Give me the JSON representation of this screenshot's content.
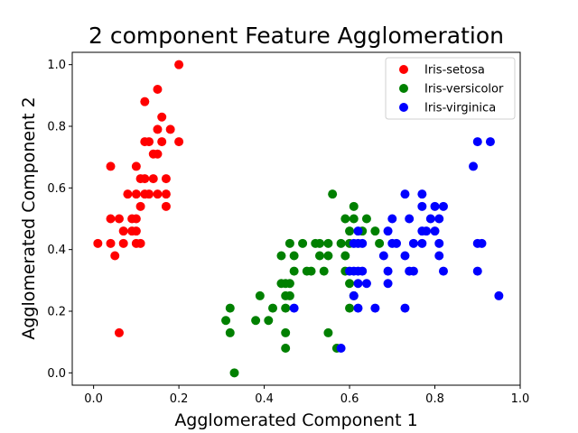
{
  "chart_data": {
    "type": "scatter",
    "title": "2 component Feature Agglomeration",
    "xlabel": "Agglomerated Component 1",
    "ylabel": "Agglomerated Component 2",
    "xlim": [
      -0.05,
      1.0
    ],
    "ylim": [
      -0.04,
      1.04
    ],
    "xticks": [
      "0.0",
      "0.2",
      "0.4",
      "0.6",
      "0.8",
      "1.0"
    ],
    "yticks": [
      "0.0",
      "0.2",
      "0.4",
      "0.6",
      "0.8",
      "1.0"
    ],
    "grid": false,
    "legend_position": "top-right",
    "series": [
      {
        "name": "Iris-setosa",
        "color": "#ff0000",
        "points": [
          [
            0.2,
            1.0
          ],
          [
            0.15,
            0.92
          ],
          [
            0.12,
            0.88
          ],
          [
            0.16,
            0.83
          ],
          [
            0.15,
            0.79
          ],
          [
            0.18,
            0.79
          ],
          [
            0.12,
            0.75
          ],
          [
            0.13,
            0.75
          ],
          [
            0.16,
            0.75
          ],
          [
            0.2,
            0.75
          ],
          [
            0.14,
            0.71
          ],
          [
            0.15,
            0.71
          ],
          [
            0.04,
            0.67
          ],
          [
            0.1,
            0.67
          ],
          [
            0.11,
            0.63
          ],
          [
            0.12,
            0.63
          ],
          [
            0.14,
            0.63
          ],
          [
            0.17,
            0.63
          ],
          [
            0.08,
            0.58
          ],
          [
            0.1,
            0.58
          ],
          [
            0.12,
            0.58
          ],
          [
            0.13,
            0.58
          ],
          [
            0.15,
            0.58
          ],
          [
            0.17,
            0.58
          ],
          [
            0.11,
            0.54
          ],
          [
            0.17,
            0.54
          ],
          [
            0.04,
            0.5
          ],
          [
            0.06,
            0.5
          ],
          [
            0.09,
            0.5
          ],
          [
            0.1,
            0.5
          ],
          [
            0.07,
            0.46
          ],
          [
            0.09,
            0.46
          ],
          [
            0.1,
            0.46
          ],
          [
            0.04,
            0.42
          ],
          [
            0.07,
            0.42
          ],
          [
            0.1,
            0.42
          ],
          [
            0.11,
            0.42
          ],
          [
            0.01,
            0.42
          ],
          [
            0.05,
            0.38
          ],
          [
            0.06,
            0.13
          ]
        ]
      },
      {
        "name": "Iris-versicolor",
        "color": "#008000",
        "points": [
          [
            0.56,
            0.58
          ],
          [
            0.61,
            0.54
          ],
          [
            0.59,
            0.5
          ],
          [
            0.61,
            0.5
          ],
          [
            0.64,
            0.5
          ],
          [
            0.6,
            0.46
          ],
          [
            0.63,
            0.46
          ],
          [
            0.66,
            0.46
          ],
          [
            0.46,
            0.42
          ],
          [
            0.49,
            0.42
          ],
          [
            0.52,
            0.42
          ],
          [
            0.53,
            0.42
          ],
          [
            0.55,
            0.42
          ],
          [
            0.58,
            0.42
          ],
          [
            0.6,
            0.42
          ],
          [
            0.67,
            0.42
          ],
          [
            0.44,
            0.38
          ],
          [
            0.47,
            0.38
          ],
          [
            0.53,
            0.38
          ],
          [
            0.55,
            0.38
          ],
          [
            0.59,
            0.38
          ],
          [
            0.47,
            0.33
          ],
          [
            0.5,
            0.33
          ],
          [
            0.51,
            0.33
          ],
          [
            0.54,
            0.33
          ],
          [
            0.59,
            0.33
          ],
          [
            0.44,
            0.29
          ],
          [
            0.45,
            0.29
          ],
          [
            0.46,
            0.29
          ],
          [
            0.6,
            0.29
          ],
          [
            0.39,
            0.25
          ],
          [
            0.45,
            0.25
          ],
          [
            0.46,
            0.25
          ],
          [
            0.61,
            0.25
          ],
          [
            0.32,
            0.21
          ],
          [
            0.42,
            0.21
          ],
          [
            0.45,
            0.21
          ],
          [
            0.6,
            0.21
          ],
          [
            0.31,
            0.17
          ],
          [
            0.38,
            0.17
          ],
          [
            0.41,
            0.17
          ],
          [
            0.32,
            0.13
          ],
          [
            0.45,
            0.13
          ],
          [
            0.55,
            0.13
          ],
          [
            0.45,
            0.08
          ],
          [
            0.57,
            0.08
          ],
          [
            0.33,
            0.0
          ]
        ]
      },
      {
        "name": "Iris-virginica",
        "color": "#0000ff",
        "points": [
          [
            0.9,
            0.75
          ],
          [
            0.93,
            0.75
          ],
          [
            0.89,
            0.67
          ],
          [
            0.73,
            0.58
          ],
          [
            0.77,
            0.58
          ],
          [
            0.77,
            0.54
          ],
          [
            0.82,
            0.54
          ],
          [
            0.8,
            0.54
          ],
          [
            0.7,
            0.5
          ],
          [
            0.74,
            0.5
          ],
          [
            0.79,
            0.5
          ],
          [
            0.81,
            0.5
          ],
          [
            0.62,
            0.46
          ],
          [
            0.69,
            0.46
          ],
          [
            0.77,
            0.46
          ],
          [
            0.78,
            0.46
          ],
          [
            0.8,
            0.46
          ],
          [
            0.61,
            0.42
          ],
          [
            0.62,
            0.42
          ],
          [
            0.63,
            0.42
          ],
          [
            0.7,
            0.42
          ],
          [
            0.71,
            0.42
          ],
          [
            0.75,
            0.42
          ],
          [
            0.77,
            0.42
          ],
          [
            0.81,
            0.42
          ],
          [
            0.9,
            0.42
          ],
          [
            0.91,
            0.42
          ],
          [
            0.68,
            0.38
          ],
          [
            0.73,
            0.38
          ],
          [
            0.81,
            0.38
          ],
          [
            0.6,
            0.33
          ],
          [
            0.61,
            0.33
          ],
          [
            0.62,
            0.33
          ],
          [
            0.63,
            0.33
          ],
          [
            0.69,
            0.33
          ],
          [
            0.74,
            0.33
          ],
          [
            0.75,
            0.33
          ],
          [
            0.82,
            0.33
          ],
          [
            0.9,
            0.33
          ],
          [
            0.62,
            0.29
          ],
          [
            0.64,
            0.29
          ],
          [
            0.69,
            0.29
          ],
          [
            0.61,
            0.25
          ],
          [
            0.95,
            0.25
          ],
          [
            0.47,
            0.21
          ],
          [
            0.62,
            0.21
          ],
          [
            0.66,
            0.21
          ],
          [
            0.73,
            0.21
          ],
          [
            0.58,
            0.08
          ]
        ]
      }
    ]
  }
}
